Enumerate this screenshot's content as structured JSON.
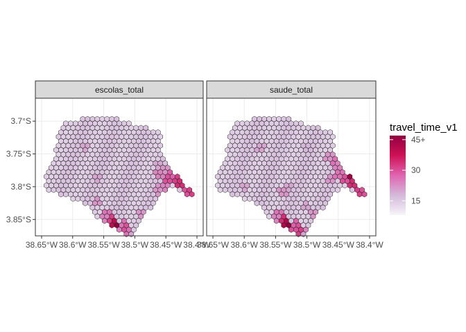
{
  "chart_data": {
    "type": "heatmap",
    "subtype": "hexagonal-grid choropleth map, two facets",
    "grid": true,
    "legend_placement": "right",
    "facets": [
      {
        "label": "escolas_total"
      },
      {
        "label": "saude_total"
      }
    ],
    "x_axis": {
      "range": [
        -38.66,
        -38.39
      ],
      "ticks": [
        {
          "value": -38.65,
          "label": "38.65°W"
        },
        {
          "value": -38.6,
          "label": "38.6°W"
        },
        {
          "value": -38.55,
          "label": "38.55°W"
        },
        {
          "value": -38.5,
          "label": "38.5°W"
        },
        {
          "value": -38.45,
          "label": "38.45°W"
        },
        {
          "value": -38.4,
          "label": "38.4°W"
        }
      ]
    },
    "y_axis": {
      "range": [
        -3.875,
        -3.665
      ],
      "ticks": [
        {
          "value": -3.7,
          "label": "3.7°S"
        },
        {
          "value": -3.75,
          "label": "3.75°S"
        },
        {
          "value": -3.8,
          "label": "3.8°S"
        },
        {
          "value": -3.85,
          "label": "3.85°S"
        }
      ]
    },
    "legend": {
      "title": "travel_time_v1",
      "min": 8,
      "max": 47,
      "ticks": [
        {
          "value": 15,
          "label": "15"
        },
        {
          "value": 30,
          "label": "30"
        },
        {
          "value": 45,
          "label": "45+"
        }
      ],
      "colors": [
        "#f7f4f9",
        "#d4b9da",
        "#df65b0",
        "#ce1256",
        "#91003f"
      ]
    },
    "hex_cell_values": {
      "baseline": 14,
      "escolas_total": [
        {
          "lon": -38.54,
          "lat": -3.85,
          "value": 32
        },
        {
          "lon": -38.535,
          "lat": -3.855,
          "value": 40
        },
        {
          "lon": -38.53,
          "lat": -3.86,
          "value": 47
        },
        {
          "lon": -38.522,
          "lat": -3.866,
          "value": 24
        },
        {
          "lon": -38.51,
          "lat": -3.87,
          "value": 26
        },
        {
          "lon": -38.505,
          "lat": -3.876,
          "value": 20
        },
        {
          "lon": -38.44,
          "lat": -3.782,
          "value": 28
        },
        {
          "lon": -38.432,
          "lat": -3.787,
          "value": 32
        },
        {
          "lon": -38.426,
          "lat": -3.797,
          "value": 34
        },
        {
          "lon": -38.418,
          "lat": -3.806,
          "value": 30
        },
        {
          "lon": -38.41,
          "lat": -3.81,
          "value": 32
        },
        {
          "lon": -38.402,
          "lat": -3.816,
          "value": 45
        },
        {
          "lon": -38.45,
          "lat": -3.79,
          "value": 30
        },
        {
          "lon": -38.45,
          "lat": -3.776,
          "value": 22
        },
        {
          "lon": -38.45,
          "lat": -3.8,
          "value": 24
        },
        {
          "lon": -38.465,
          "lat": -3.805,
          "value": 22
        },
        {
          "lon": -38.46,
          "lat": -3.78,
          "value": 24
        },
        {
          "lon": -38.49,
          "lat": -3.84,
          "value": 22
        },
        {
          "lon": -38.545,
          "lat": -3.84,
          "value": 26
        },
        {
          "lon": -38.55,
          "lat": -3.846,
          "value": 24
        },
        {
          "lon": -38.56,
          "lat": -3.82,
          "value": 22
        },
        {
          "lon": -38.52,
          "lat": -3.858,
          "value": 26
        },
        {
          "lon": -38.515,
          "lat": -3.862,
          "value": 30
        },
        {
          "lon": -38.56,
          "lat": -3.79,
          "value": 20
        },
        {
          "lon": -38.58,
          "lat": -3.74,
          "value": 20
        },
        {
          "lon": -38.465,
          "lat": -3.765,
          "value": 20
        }
      ],
      "saude_total": [
        {
          "lon": -38.54,
          "lat": -3.85,
          "value": 34
        },
        {
          "lon": -38.535,
          "lat": -3.855,
          "value": 42
        },
        {
          "lon": -38.53,
          "lat": -3.86,
          "value": 47
        },
        {
          "lon": -38.522,
          "lat": -3.866,
          "value": 30
        },
        {
          "lon": -38.51,
          "lat": -3.87,
          "value": 32
        },
        {
          "lon": -38.505,
          "lat": -3.876,
          "value": 20
        },
        {
          "lon": -38.5,
          "lat": -3.87,
          "value": 24
        },
        {
          "lon": -38.44,
          "lat": -3.79,
          "value": 30
        },
        {
          "lon": -38.432,
          "lat": -3.787,
          "value": 45
        },
        {
          "lon": -38.428,
          "lat": -3.783,
          "value": 47
        },
        {
          "lon": -38.426,
          "lat": -3.797,
          "value": 34
        },
        {
          "lon": -38.418,
          "lat": -3.806,
          "value": 32
        },
        {
          "lon": -38.41,
          "lat": -3.81,
          "value": 30
        },
        {
          "lon": -38.402,
          "lat": -3.816,
          "value": 45
        },
        {
          "lon": -38.45,
          "lat": -3.78,
          "value": 26
        },
        {
          "lon": -38.45,
          "lat": -3.768,
          "value": 24
        },
        {
          "lon": -38.458,
          "lat": -3.76,
          "value": 26
        },
        {
          "lon": -38.465,
          "lat": -3.755,
          "value": 22
        },
        {
          "lon": -38.46,
          "lat": -3.79,
          "value": 22
        },
        {
          "lon": -38.49,
          "lat": -3.84,
          "value": 22
        },
        {
          "lon": -38.545,
          "lat": -3.84,
          "value": 26
        },
        {
          "lon": -38.55,
          "lat": -3.846,
          "value": 24
        },
        {
          "lon": -38.52,
          "lat": -3.858,
          "value": 28
        },
        {
          "lon": -38.515,
          "lat": -3.862,
          "value": 30
        },
        {
          "lon": -38.6,
          "lat": -3.8,
          "value": 20
        },
        {
          "lon": -38.575,
          "lat": -3.74,
          "value": 20
        },
        {
          "lon": -38.54,
          "lat": -3.81,
          "value": 22
        },
        {
          "lon": -38.5,
          "lat": -3.83,
          "value": 20
        },
        {
          "lon": -38.53,
          "lat": -3.8,
          "value": 20
        },
        {
          "lon": -38.5,
          "lat": -3.74,
          "value": 18
        }
      ]
    }
  }
}
